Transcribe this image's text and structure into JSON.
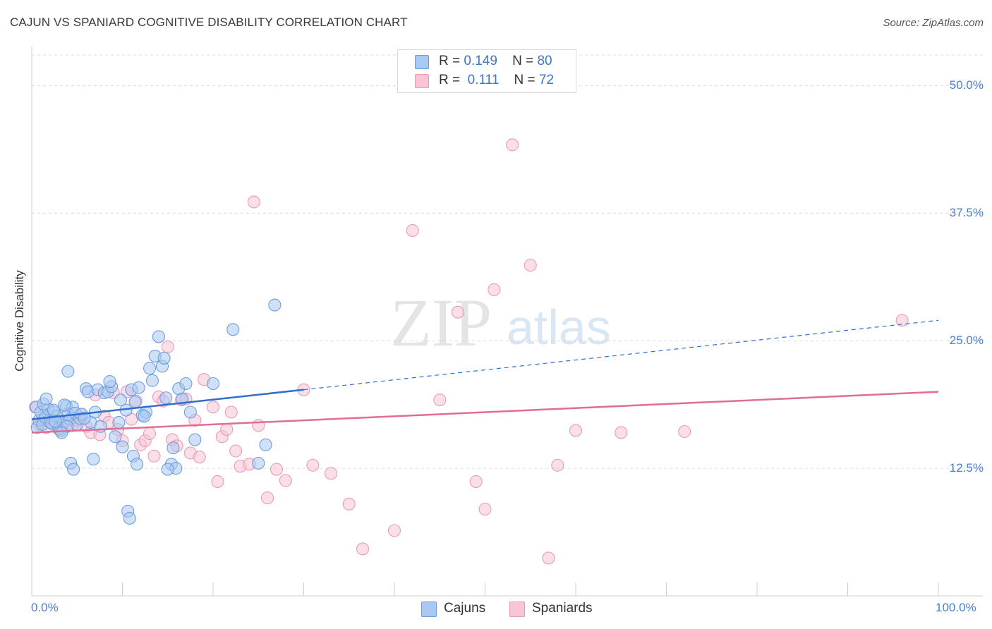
{
  "header": {
    "title": "CAJUN VS SPANIARD COGNITIVE DISABILITY CORRELATION CHART",
    "source": "Source: ZipAtlas.com"
  },
  "watermark": "ZIPatlas",
  "legend_top": {
    "rows": [
      {
        "r_label": "R =",
        "r_value": "0.149",
        "n_label": "N =",
        "n_value": "80"
      },
      {
        "r_label": "R =",
        "r_value": "0.111",
        "n_label": "N =",
        "n_value": "72"
      }
    ]
  },
  "legend_bottom": {
    "items": [
      "Cajuns",
      "Spaniards"
    ]
  },
  "colors": {
    "cajun_fill": "#a9c9f1",
    "cajun_stroke": "#6d9ee0",
    "cajun_line": "#2f6fce",
    "spaniard_fill": "#f7c5d5",
    "spaniard_stroke": "#e99bb6",
    "spaniard_line": "#e06c97",
    "tick_text": "#4a7fcf",
    "grid": "#dcdcdc"
  },
  "chart_data": {
    "type": "scatter",
    "title": "CAJUN VS SPANIARD COGNITIVE DISABILITY CORRELATION CHART",
    "xlabel": "",
    "ylabel": "Cognitive Disability",
    "xlim": [
      0,
      100
    ],
    "ylim": [
      0,
      53
    ],
    "x_tick_labels": [
      "0.0%",
      "100.0%"
    ],
    "y_ticks": [
      12.5,
      25.0,
      37.5,
      50.0
    ],
    "y_tick_labels": [
      "12.5%",
      "25.0%",
      "37.5%",
      "50.0%"
    ],
    "grid": true,
    "legend_position": "top-center",
    "series": [
      {
        "name": "Cajuns",
        "r": 0.149,
        "n": 80,
        "trend": {
          "x0": 0,
          "y0": 17.3,
          "x1": 30,
          "y1": 20.2,
          "dashed_to_x": 100,
          "dashed_to_y": 27.0
        },
        "points": [
          [
            0.5,
            18.5
          ],
          [
            0.6,
            16.5
          ],
          [
            0.8,
            17.2
          ],
          [
            1.0,
            18.0
          ],
          [
            1.2,
            16.8
          ],
          [
            1.5,
            17.5
          ],
          [
            1.8,
            18.3
          ],
          [
            2.0,
            17.0
          ],
          [
            2.2,
            16.9
          ],
          [
            2.5,
            18.0
          ],
          [
            2.8,
            17.6
          ],
          [
            3.0,
            16.4
          ],
          [
            3.2,
            16.2
          ],
          [
            3.5,
            17.0
          ],
          [
            3.8,
            18.6
          ],
          [
            4.0,
            17.8
          ],
          [
            4.2,
            17.3
          ],
          [
            4.5,
            18.5
          ],
          [
            4.8,
            17.9
          ],
          [
            5.0,
            16.8
          ],
          [
            5.3,
            17.4
          ],
          [
            1.3,
            18.8
          ],
          [
            1.6,
            19.3
          ],
          [
            2.4,
            18.2
          ],
          [
            3.6,
            18.7
          ],
          [
            3.9,
            16.6
          ],
          [
            6.0,
            20.3
          ],
          [
            6.2,
            20.0
          ],
          [
            6.5,
            17.0
          ],
          [
            7.0,
            18.0
          ],
          [
            7.3,
            20.2
          ],
          [
            7.6,
            16.6
          ],
          [
            8.0,
            19.9
          ],
          [
            8.4,
            20.0
          ],
          [
            8.8,
            20.5
          ],
          [
            9.2,
            15.6
          ],
          [
            9.6,
            17.0
          ],
          [
            10.0,
            14.6
          ],
          [
            10.4,
            18.2
          ],
          [
            11.0,
            20.2
          ],
          [
            11.4,
            19.0
          ],
          [
            11.8,
            20.4
          ],
          [
            12.2,
            17.7
          ],
          [
            12.6,
            18.0
          ],
          [
            13.0,
            22.3
          ],
          [
            13.3,
            21.1
          ],
          [
            13.6,
            23.5
          ],
          [
            14.0,
            25.4
          ],
          [
            14.4,
            22.5
          ],
          [
            14.8,
            19.4
          ],
          [
            15.4,
            12.9
          ],
          [
            15.9,
            12.5
          ],
          [
            16.2,
            20.3
          ],
          [
            16.6,
            19.3
          ],
          [
            17.0,
            20.8
          ],
          [
            17.5,
            18.0
          ],
          [
            18.0,
            15.3
          ],
          [
            20.0,
            20.8
          ],
          [
            22.2,
            26.1
          ],
          [
            25.0,
            13.0
          ],
          [
            25.8,
            14.8
          ],
          [
            26.8,
            28.5
          ],
          [
            4.0,
            22.0
          ],
          [
            4.3,
            13.0
          ],
          [
            4.6,
            12.4
          ],
          [
            5.5,
            17.8
          ],
          [
            6.8,
            13.4
          ],
          [
            8.6,
            21.0
          ],
          [
            9.8,
            19.2
          ],
          [
            10.6,
            8.3
          ],
          [
            11.2,
            13.7
          ],
          [
            11.6,
            12.9
          ],
          [
            14.6,
            23.3
          ],
          [
            15.0,
            12.4
          ],
          [
            15.6,
            14.5
          ],
          [
            12.4,
            17.6
          ],
          [
            10.8,
            7.6
          ],
          [
            2.6,
            17.1
          ],
          [
            3.3,
            16.0
          ],
          [
            5.8,
            17.4
          ]
        ]
      },
      {
        "name": "Spaniards",
        "r": 0.111,
        "n": 72,
        "trend": {
          "x0": 0,
          "y0": 16.0,
          "x1": 100,
          "y1": 20.0
        },
        "points": [
          [
            0.4,
            18.5
          ],
          [
            0.8,
            16.8
          ],
          [
            1.2,
            17.3
          ],
          [
            1.6,
            16.5
          ],
          [
            2.0,
            17.2
          ],
          [
            2.5,
            16.8
          ],
          [
            3.0,
            16.3
          ],
          [
            3.5,
            17.0
          ],
          [
            4.0,
            16.9
          ],
          [
            4.5,
            16.7
          ],
          [
            5.0,
            17.2
          ],
          [
            5.5,
            17.8
          ],
          [
            6.0,
            16.6
          ],
          [
            6.5,
            16.0
          ],
          [
            7.0,
            19.7
          ],
          [
            7.5,
            15.8
          ],
          [
            8.0,
            17.6
          ],
          [
            8.5,
            17.0
          ],
          [
            9.0,
            19.9
          ],
          [
            9.5,
            16.3
          ],
          [
            10.0,
            15.2
          ],
          [
            10.5,
            20.0
          ],
          [
            11.0,
            17.3
          ],
          [
            11.5,
            19.1
          ],
          [
            12.0,
            14.8
          ],
          [
            12.5,
            15.2
          ],
          [
            13.0,
            15.9
          ],
          [
            13.5,
            13.7
          ],
          [
            14.0,
            19.5
          ],
          [
            14.5,
            19.1
          ],
          [
            15.0,
            24.4
          ],
          [
            15.5,
            15.3
          ],
          [
            16.0,
            14.7
          ],
          [
            16.5,
            19.2
          ],
          [
            17.0,
            19.3
          ],
          [
            17.5,
            14.0
          ],
          [
            18.0,
            17.2
          ],
          [
            18.5,
            13.6
          ],
          [
            19.0,
            21.2
          ],
          [
            20.0,
            18.5
          ],
          [
            20.5,
            11.2
          ],
          [
            21.0,
            15.6
          ],
          [
            21.5,
            16.3
          ],
          [
            22.0,
            18.0
          ],
          [
            22.5,
            14.2
          ],
          [
            23.0,
            12.7
          ],
          [
            24.0,
            12.9
          ],
          [
            25.0,
            16.7
          ],
          [
            26.0,
            9.6
          ],
          [
            27.0,
            12.4
          ],
          [
            28.0,
            11.3
          ],
          [
            30.0,
            20.2
          ],
          [
            31.0,
            12.8
          ],
          [
            33.0,
            12.0
          ],
          [
            35.0,
            9.0
          ],
          [
            36.5,
            4.6
          ],
          [
            40.0,
            6.4
          ],
          [
            42.0,
            35.8
          ],
          [
            45.0,
            19.2
          ],
          [
            47.0,
            27.8
          ],
          [
            49.0,
            11.2
          ],
          [
            50.0,
            8.5
          ],
          [
            51.0,
            30.0
          ],
          [
            53.0,
            44.2
          ],
          [
            55.0,
            32.4
          ],
          [
            57.0,
            3.7
          ],
          [
            58.0,
            12.8
          ],
          [
            60.0,
            16.2
          ],
          [
            65.0,
            16.0
          ],
          [
            72.0,
            16.1
          ],
          [
            96.0,
            27.0
          ],
          [
            24.5,
            38.6
          ]
        ]
      }
    ]
  }
}
